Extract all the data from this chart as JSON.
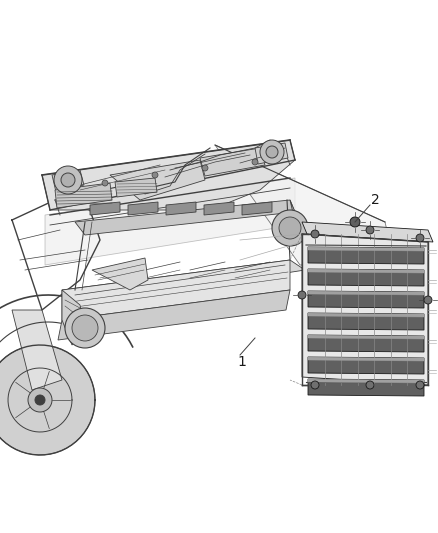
{
  "bg_color": "#ffffff",
  "fig_width": 4.38,
  "fig_height": 5.33,
  "dpi": 100,
  "line_color": "#404040",
  "light_gray": "#aaaaaa",
  "mid_gray": "#888888",
  "dark_line": "#1a1a1a"
}
